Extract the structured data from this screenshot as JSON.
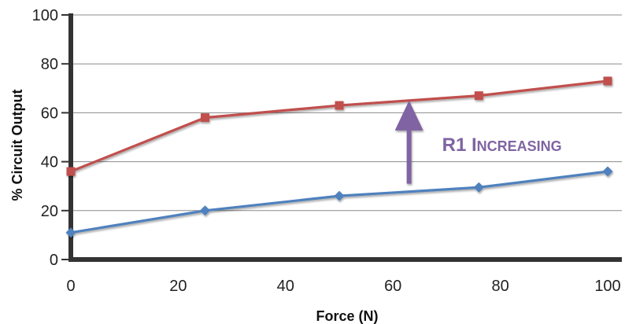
{
  "chart_data": {
    "type": "line",
    "title": "",
    "xlabel": "Force (N)",
    "ylabel": "% Circuit Output",
    "xlim": [
      0,
      100
    ],
    "ylim": [
      0,
      100
    ],
    "xticks": [
      0,
      20,
      40,
      60,
      80,
      100
    ],
    "yticks": [
      0,
      20,
      40,
      60,
      80,
      100
    ],
    "grid": "horizontal",
    "series": [
      {
        "color": "#c0504d",
        "marker": "square",
        "points": [
          [
            0,
            36
          ],
          [
            25,
            58
          ],
          [
            50,
            63
          ],
          [
            76,
            67
          ],
          [
            100,
            73
          ]
        ]
      },
      {
        "color": "#4f81bd",
        "marker": "diamond",
        "points": [
          [
            0,
            11
          ],
          [
            25,
            20
          ],
          [
            50,
            26
          ],
          [
            76,
            29.5
          ],
          [
            100,
            36
          ]
        ]
      }
    ],
    "annotation": {
      "label_main": "R1 I",
      "label_smallcaps": "NCREASING",
      "color": "#8064a2",
      "arrow_x": 63,
      "arrow_from_y": 31,
      "arrow_to_y": 65
    }
  }
}
